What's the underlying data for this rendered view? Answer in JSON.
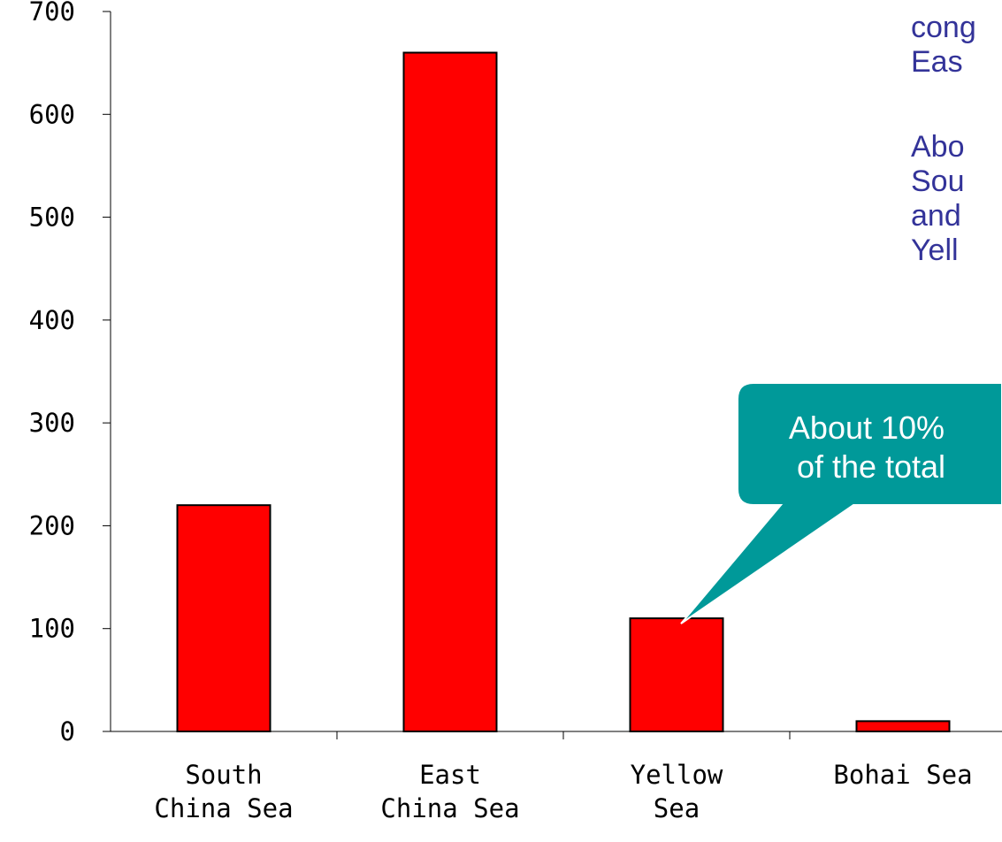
{
  "chart_data": {
    "type": "bar",
    "categories": [
      [
        "South",
        "China Sea"
      ],
      [
        "East",
        "China Sea"
      ],
      [
        "Yellow",
        "Sea"
      ],
      [
        "Bohai Sea"
      ]
    ],
    "values": [
      220,
      660,
      110,
      10
    ],
    "ylim": [
      0,
      700
    ],
    "yticks": [
      0,
      100,
      200,
      300,
      400,
      500,
      600,
      700
    ],
    "title": "",
    "xlabel": "",
    "ylabel": "",
    "grid": false,
    "bar_color": "#ff0000",
    "callout": {
      "lines": [
        "About 10%",
        "of the total"
      ],
      "target_category_index": 2,
      "color": "#009999"
    }
  },
  "side_text": {
    "para1": [
      "cong",
      "Eas"
    ],
    "para2": [
      "Abo",
      "Sou",
      "and",
      "Yell"
    ],
    "color": "#333399"
  }
}
